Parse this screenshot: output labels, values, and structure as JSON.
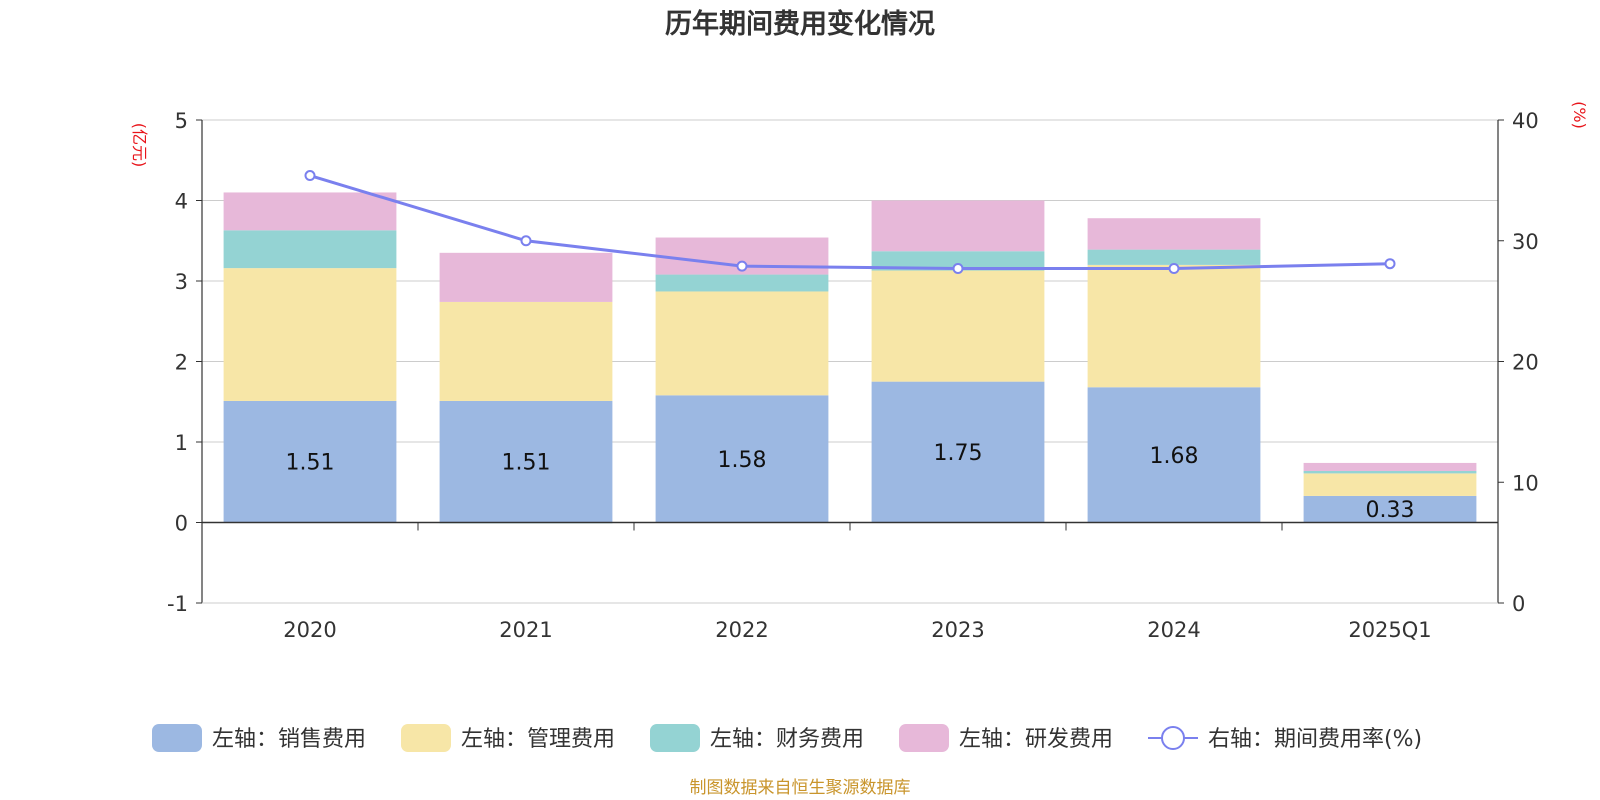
{
  "chart_data": {
    "type": "bar",
    "stacked": true,
    "title": "历年期间费用变化情况",
    "categories": [
      "2020",
      "2021",
      "2022",
      "2023",
      "2024",
      "2025Q1"
    ],
    "left_axis": {
      "unit": "(亿元)",
      "ylim": [
        -1,
        5
      ],
      "ticks": [
        "5",
        "4",
        "3",
        "2",
        "1",
        "0",
        "-1"
      ],
      "tick_values": [
        5,
        4,
        3,
        2,
        1,
        0,
        -1
      ]
    },
    "right_axis": {
      "unit": "(%)",
      "ylim": [
        0,
        40
      ],
      "ticks": [
        "40",
        "30",
        "20",
        "10",
        "0"
      ],
      "tick_values": [
        40,
        30,
        20,
        10,
        0
      ]
    },
    "series": [
      {
        "name": "左轴：销售费用",
        "axis": "left",
        "color": "#9cb8e2",
        "values": [
          1.51,
          1.51,
          1.58,
          1.75,
          1.68,
          0.33
        ],
        "labels": [
          "1.51",
          "1.51",
          "1.58",
          "1.75",
          "1.68",
          "0.33"
        ]
      },
      {
        "name": "左轴：管理费用",
        "axis": "left",
        "color": "#f7e6a7",
        "values": [
          1.65,
          1.23,
          1.29,
          1.38,
          1.52,
          0.28
        ]
      },
      {
        "name": "左轴：财务费用",
        "axis": "left",
        "color": "#94d3d3",
        "values": [
          0.47,
          -0.01,
          0.21,
          0.24,
          0.19,
          0.03
        ]
      },
      {
        "name": "左轴：研发费用",
        "axis": "left",
        "color": "#e7b8d9",
        "values": [
          0.47,
          0.61,
          0.46,
          0.63,
          0.39,
          0.1
        ]
      },
      {
        "name": "右轴：期间费用率(%)",
        "axis": "right",
        "type": "line",
        "color": "#7a80ee",
        "values": [
          35.4,
          30.0,
          27.9,
          27.7,
          27.7,
          28.1
        ]
      }
    ],
    "grid": true,
    "legend_position": "bottom",
    "source": "制图数据来自恒生聚源数据库"
  }
}
